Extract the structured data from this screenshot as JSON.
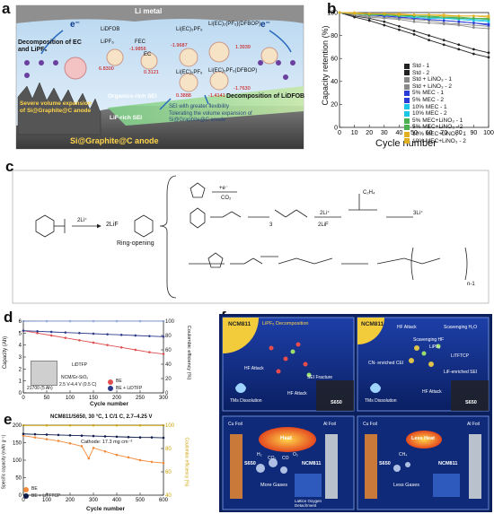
{
  "panels": {
    "a": "a",
    "b": "b",
    "c": "c",
    "d": "d",
    "e": "e",
    "f": "f"
  },
  "panel_a": {
    "li_metal": "Li metal",
    "lidfob": "LiDFOB",
    "lipf6": "LiPF₆",
    "fec": "FEC",
    "ec": "EC",
    "complex1": "Li(EC)₃PF₆",
    "complex2": "Li(EC)₂(PF₆)(DFBOP)",
    "complex3": "Li(EC)₂PF₆",
    "complex4": "Li(EC)₃PF₆(DFBOP)",
    "e1": "6.8300",
    "e2": "-1.9856",
    "e3": "0.3121",
    "e4": "-1.9687",
    "e5": "0.3888",
    "e6": "-1.4141",
    "e7": "1.3939",
    "e8": "-1.7630",
    "decomp_left": "Decomposition of EC and LiPF₆",
    "decomp_right": "Decomposition of LiDFOB",
    "severe": "Severe volume expansion of Si@Graphite@C anode",
    "org_sei": "Organics-rich SEI",
    "lif_sei": "LiF-rich SEI",
    "sei_flex": "SEI with greater flexibility",
    "sei_tol": "Tolerating the volume expansion of Si@Graphite@C anode",
    "anode": "Si@Graphite@C anode",
    "e_minus": "e⁻"
  },
  "panel_c": {
    "li1": "2Li⁺",
    "lif2": "2LiF",
    "ring": "Ring-opening",
    "e_co2": "+e⁻",
    "co2": "CO₂",
    "c2h4": "C₂H₄",
    "li2": "2Li⁺",
    "li3": "2LiF",
    "li4": "3Li⁺",
    "n1": "n-1",
    "n3": "3"
  },
  "panel_d": {
    "cell_label": "21700 (5 Ah)",
    "additive": "LiDTFP",
    "cell_info": "NCM/Gr-SiOₓ",
    "cond": "2.5 V-4.4 V (0.5 C)",
    "legend_be": "BE",
    "legend_be_add": "BE + LiDTFP"
  },
  "panel_e": {
    "title": "NCM811/S650, 30 °C, 1 C/1 C, 2.7–4.25 V",
    "cathode": "Cathode: 17.3 mg cm⁻²",
    "legend_be": "BE",
    "legend_be_add": "BE + LiTFTCP"
  },
  "panel_f": {
    "ncm811": "NCM811",
    "lipf6_decomp": "LiPF₆ Decomposition",
    "hf_attack": "HF Attack",
    "tm_diss": "TMs Dissolution",
    "s650": "S650",
    "sei_fracture": "SEI Fracture",
    "scav_h2o": "Scavenging H₂O",
    "scav_hf": "Scavenging HF",
    "cn_cei": "CN- enriched CEI",
    "litftcp": "LiTFTCP",
    "lif_sei": "LiF-enriched SEI",
    "lipf6": "LiPF₆",
    "cu_foil": "Cu Foil",
    "al_foil": "Al Foil",
    "heat": "Heat",
    "less_heat": "Less Heat",
    "more_gases": "More Gases",
    "less_gases": "Less Gases",
    "lattice": "Lattice Oxygen Detachment",
    "gas_h2": "H₂",
    "gas_co2": "CO₂",
    "gas_co": "CO",
    "gas_o2": "O₂",
    "gas_ch4": "CH₄"
  },
  "colors": {
    "std": "#222222",
    "lino3": "#8a8a8a",
    "mec5": "#2b3bd6",
    "mec10": "#1cc7e6",
    "mecli": "#e0b020",
    "red": "#e05050",
    "blue": "#2c3a8c",
    "navy": "#0c1a4a",
    "orange": "#f28a3a"
  },
  "chart_data": [
    {
      "panel": "b",
      "type": "line",
      "xlabel": "Cycle number",
      "ylabel": "Capacity retention (%)",
      "xlim": [
        0,
        100
      ],
      "ylim": [
        0,
        100
      ],
      "xticks": [
        0,
        10,
        20,
        30,
        40,
        50,
        60,
        70,
        80,
        90,
        100
      ],
      "yticks": [
        0,
        20,
        40,
        60,
        80,
        100
      ],
      "legend_position": "inside-right",
      "series": [
        {
          "name": "Std - 1",
          "color": "#222222",
          "marker": "square",
          "x": [
            0,
            10,
            20,
            30,
            40,
            50,
            60,
            70,
            80,
            90,
            100
          ],
          "values": [
            100,
            97,
            95,
            92,
            88,
            84,
            80,
            76,
            72,
            68,
            65
          ]
        },
        {
          "name": "Std - 2",
          "color": "#222222",
          "marker": "circle",
          "x": [
            0,
            10,
            20,
            30,
            40,
            50,
            60,
            70,
            80,
            90,
            100
          ],
          "values": [
            100,
            96,
            93,
            89,
            85,
            81,
            76,
            72,
            68,
            64,
            61
          ]
        },
        {
          "name": "Std + LiNO₃ - 1",
          "color": "#8a8a8a",
          "marker": "triangle",
          "x": [
            0,
            10,
            20,
            30,
            40,
            50,
            60,
            70,
            80,
            90,
            100
          ],
          "values": [
            100,
            98,
            97,
            96,
            95,
            94,
            93,
            91,
            90,
            89,
            88
          ]
        },
        {
          "name": "Std + LiNO₃ - 2",
          "color": "#8a8a8a",
          "marker": "open-circle",
          "x": [
            0,
            10,
            20,
            30,
            40,
            50,
            60,
            70,
            80,
            90,
            100
          ],
          "values": [
            100,
            98,
            96,
            95,
            94,
            92,
            91,
            90,
            89,
            87,
            86
          ]
        },
        {
          "name": "5% MEC - 1",
          "color": "#2b3bd6",
          "marker": "triangle",
          "x": [
            0,
            10,
            20,
            30,
            40,
            50,
            60,
            70,
            80,
            90,
            100
          ],
          "values": [
            100,
            99,
            98,
            97,
            96,
            95,
            94,
            93,
            92,
            91,
            90
          ]
        },
        {
          "name": "5% MEC - 2",
          "color": "#2b3bd6",
          "marker": "open-triangle",
          "x": [
            0,
            10,
            20,
            30,
            40,
            50,
            60,
            70,
            80,
            90,
            100
          ],
          "values": [
            100,
            99,
            98,
            97,
            96,
            95,
            94,
            93,
            92,
            91,
            89
          ]
        },
        {
          "name": "10% MEC - 1",
          "color": "#1cc7e6",
          "marker": "diamond",
          "x": [
            0,
            10,
            20,
            30,
            40,
            50,
            60,
            70,
            80,
            90,
            100
          ],
          "values": [
            100,
            99,
            99,
            98,
            97,
            97,
            96,
            95,
            95,
            94,
            93
          ]
        },
        {
          "name": "10% MEC - 2",
          "color": "#1cc7e6",
          "marker": "open-diamond",
          "x": [
            0,
            10,
            20,
            30,
            40,
            50,
            60,
            70,
            80,
            90,
            100
          ],
          "values": [
            100,
            99,
            98,
            98,
            97,
            96,
            95,
            95,
            94,
            93,
            92
          ]
        },
        {
          "name": "5% MEC+LiNO₃ - 1",
          "color": "#4caf50",
          "marker": "triangle",
          "x": [
            0,
            10,
            20,
            30,
            40,
            50,
            60,
            70,
            80,
            90,
            100
          ],
          "values": [
            100,
            99,
            99,
            98,
            98,
            97,
            97,
            96,
            96,
            95,
            95
          ]
        },
        {
          "name": "5% MEC+LiNO₃ - 2",
          "color": "#4caf50",
          "marker": "open-triangle",
          "x": [
            0,
            10,
            20,
            30,
            40,
            50,
            60,
            70,
            80,
            90,
            100
          ],
          "values": [
            100,
            99,
            98,
            98,
            97,
            97,
            96,
            96,
            95,
            95,
            94
          ]
        },
        {
          "name": "10% MEC+LiNO₃ - 1",
          "color": "#e0b020",
          "marker": "square",
          "x": [
            0,
            10,
            20,
            30,
            40,
            50,
            60,
            70,
            80,
            90,
            100
          ],
          "values": [
            100,
            100,
            99,
            99,
            99,
            98,
            98,
            98,
            97,
            97,
            97
          ]
        },
        {
          "name": "10% MEC+LiNO₃ - 2",
          "color": "#e0b020",
          "marker": "open-square",
          "x": [
            0,
            10,
            20,
            30,
            40,
            50,
            60,
            70,
            80,
            90,
            100
          ],
          "values": [
            100,
            99,
            99,
            99,
            98,
            98,
            98,
            97,
            97,
            97,
            96
          ]
        }
      ]
    },
    {
      "panel": "d",
      "type": "scatter",
      "xlabel": "Cycle number",
      "ylabel": "Capacity (Ah)",
      "y2label": "Coulombic efficiency (%)",
      "xlim": [
        0,
        300
      ],
      "ylim": [
        0,
        6
      ],
      "y2lim": [
        0,
        100
      ],
      "xticks": [
        0,
        50,
        100,
        150,
        200,
        250,
        300
      ],
      "yticks": [
        0,
        1,
        2,
        3,
        4,
        5,
        6
      ],
      "y2ticks": [
        0,
        20,
        40,
        60,
        80,
        100
      ],
      "series": [
        {
          "name": "BE",
          "color": "#e05050",
          "x": [
            0,
            30,
            60,
            90,
            120,
            150,
            180,
            210,
            240,
            270,
            300
          ],
          "values": [
            5.2,
            5.0,
            4.8,
            4.6,
            4.4,
            4.2,
            4.0,
            3.8,
            3.6,
            3.4,
            3.25
          ]
        },
        {
          "name": "BE + LiDTFP",
          "color": "#2c3a8c",
          "x": [
            0,
            30,
            60,
            90,
            120,
            150,
            180,
            210,
            240,
            270,
            300
          ],
          "values": [
            5.2,
            5.15,
            5.1,
            5.05,
            5.0,
            4.95,
            4.9,
            4.85,
            4.8,
            4.75,
            4.7
          ]
        },
        {
          "name": "CE",
          "axis": "y2",
          "x": [
            0,
            50,
            100,
            150,
            200,
            250,
            300
          ],
          "values": [
            99.8,
            99.9,
            99.9,
            99.9,
            99.9,
            99.9,
            99.9
          ]
        }
      ]
    },
    {
      "panel": "e",
      "type": "scatter",
      "title": "NCM811/S650, 30 °C, 1 C/1 C, 2.7–4.25 V",
      "xlabel": "Cycle number",
      "ylabel": "Specific capacity (mAh g⁻¹)",
      "y2label": "Coulombic efficiency (%)",
      "xlim": [
        0,
        600
      ],
      "ylim": [
        0,
        200
      ],
      "y2lim": [
        40,
        100
      ],
      "xticks": [
        0,
        100,
        200,
        300,
        400,
        500,
        600
      ],
      "yticks": [
        0,
        50,
        100,
        150,
        200
      ],
      "y2ticks": [
        40,
        60,
        80,
        100
      ],
      "series": [
        {
          "name": "BE",
          "color": "#f28a3a",
          "x": [
            0,
            50,
            100,
            150,
            200,
            250,
            280,
            300,
            350,
            400,
            450,
            500,
            550,
            600
          ],
          "values": [
            170,
            165,
            160,
            155,
            148,
            140,
            105,
            135,
            125,
            115,
            108,
            100,
            95,
            92
          ]
        },
        {
          "name": "BE + LiTFTCP",
          "color": "#0c1a4a",
          "x": [
            0,
            50,
            100,
            150,
            200,
            250,
            300,
            350,
            400,
            450,
            500,
            550,
            600
          ],
          "values": [
            175,
            174,
            173,
            172,
            171,
            170,
            169,
            168,
            167,
            166,
            165,
            165,
            164
          ]
        },
        {
          "name": "CE",
          "axis": "y2",
          "x": [
            0,
            100,
            200,
            300,
            400,
            500,
            600
          ],
          "values": [
            99.8,
            99.8,
            99.8,
            99.8,
            99.8,
            99.8,
            99.8
          ]
        }
      ]
    }
  ]
}
